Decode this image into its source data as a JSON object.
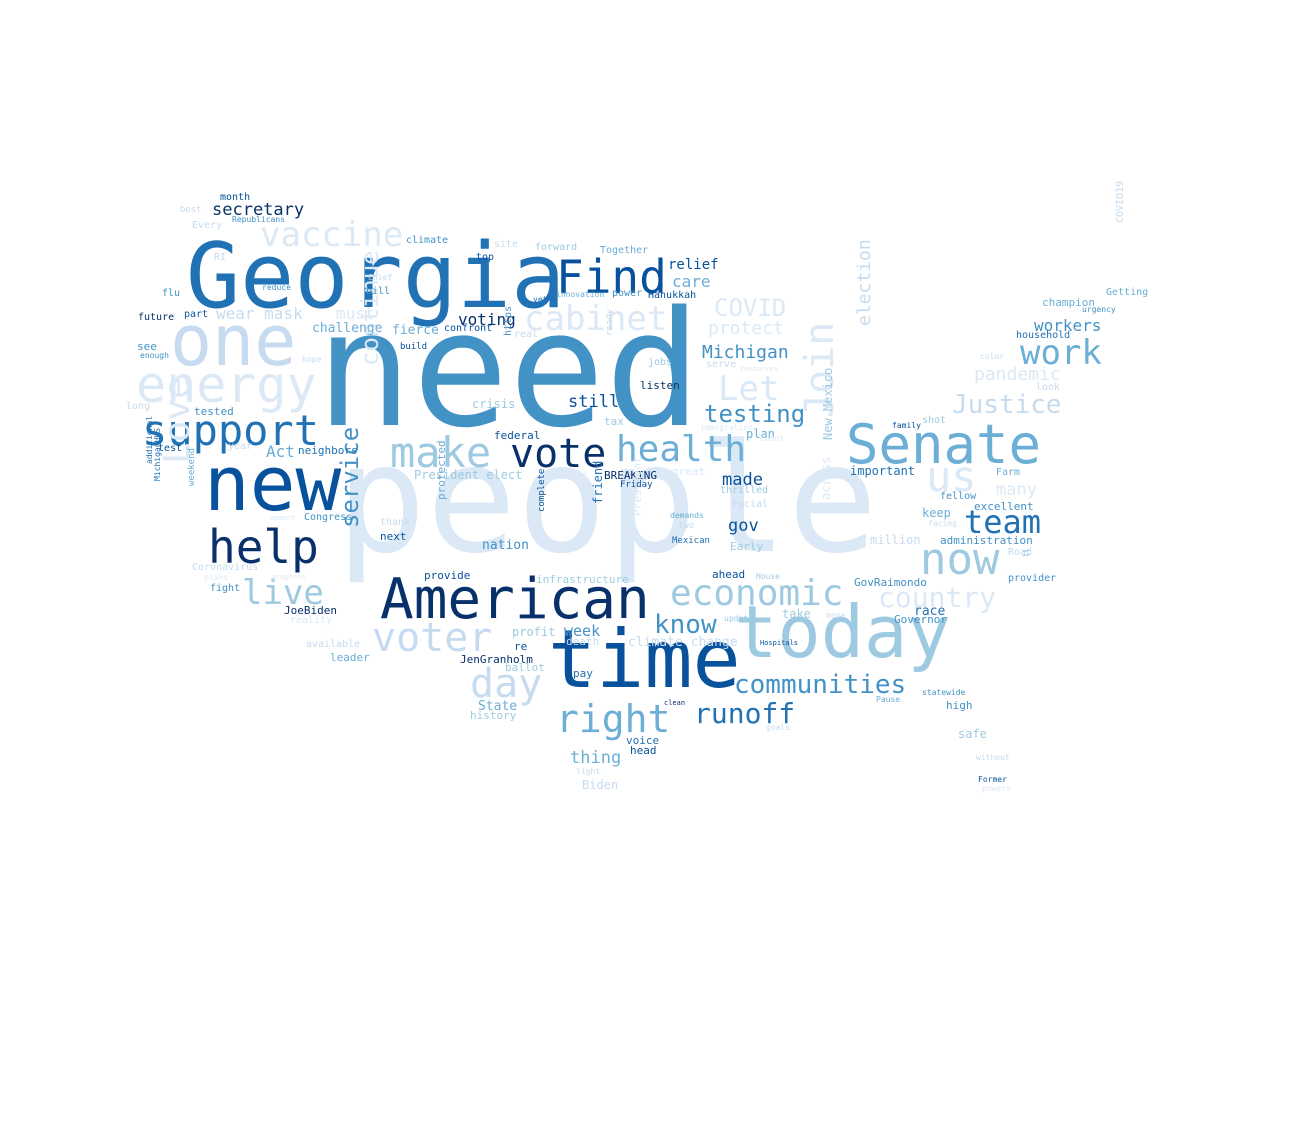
{
  "palette": {
    "p1": "#dbe8f5",
    "p2": "#c6dbef",
    "p3": "#9ecae1",
    "p4": "#6baed6",
    "p5": "#4292c6",
    "p6": "#2171b5",
    "p7": "#08519c",
    "p8": "#08306b"
  },
  "words": [
    {
      "text": "need",
      "color": "p5"
    },
    {
      "text": "people",
      "color": "p1"
    },
    {
      "text": "Georgia",
      "color": "p6"
    },
    {
      "text": "time",
      "color": "p7"
    },
    {
      "text": "new",
      "color": "p7"
    },
    {
      "text": "today",
      "color": "p3"
    },
    {
      "text": "one",
      "color": "p2"
    },
    {
      "text": "American",
      "color": "p8"
    },
    {
      "text": "Senate",
      "color": "p4"
    },
    {
      "text": "energy",
      "color": "p1"
    },
    {
      "text": "help",
      "color": "p8"
    },
    {
      "text": "support",
      "color": "p6"
    },
    {
      "text": "Find",
      "color": "p7"
    },
    {
      "text": "make",
      "color": "p3"
    },
    {
      "text": "vote",
      "color": "p8"
    },
    {
      "text": "health",
      "color": "p4"
    },
    {
      "text": "now",
      "color": "p3"
    },
    {
      "text": "right",
      "color": "p4"
    },
    {
      "text": "voter",
      "color": "p2"
    },
    {
      "text": "day",
      "color": "p2"
    },
    {
      "text": "economic",
      "color": "p3"
    },
    {
      "text": "cabinet",
      "color": "p1"
    },
    {
      "text": "vaccine",
      "color": "p1"
    },
    {
      "text": "live",
      "color": "p3"
    },
    {
      "text": "team",
      "color": "p6"
    },
    {
      "text": "work",
      "color": "p4"
    },
    {
      "text": "us",
      "color": "p1"
    },
    {
      "text": "Justice",
      "color": "p2"
    },
    {
      "text": "communities",
      "color": "p5"
    },
    {
      "text": "country",
      "color": "p1"
    },
    {
      "text": "Let",
      "color": "p1"
    },
    {
      "text": "runoff",
      "color": "p6"
    },
    {
      "text": "know",
      "color": "p5"
    },
    {
      "text": "Join",
      "color": "p1"
    },
    {
      "text": "Love",
      "color": "p1"
    },
    {
      "text": "service",
      "color": "p5"
    },
    {
      "text": "continue",
      "color": "p1"
    },
    {
      "text": "COVID",
      "color": "p1"
    },
    {
      "text": "testing",
      "color": "p5"
    },
    {
      "text": "Michigan",
      "color": "p5"
    },
    {
      "text": "protect",
      "color": "p1"
    },
    {
      "text": "election",
      "color": "p2"
    },
    {
      "text": "pandemic",
      "color": "p1"
    },
    {
      "text": "wear mask",
      "color": "p2"
    },
    {
      "text": "must",
      "color": "p1"
    },
    {
      "text": "secretary",
      "color": "p8"
    },
    {
      "text": "voting",
      "color": "p8"
    },
    {
      "text": "still",
      "color": "p7"
    },
    {
      "text": "workers",
      "color": "p5"
    },
    {
      "text": "care",
      "color": "p4"
    },
    {
      "text": "relief",
      "color": "p7"
    },
    {
      "text": "gov",
      "color": "p7"
    },
    {
      "text": "made",
      "color": "p7"
    },
    {
      "text": "week",
      "color": "p5"
    },
    {
      "text": "thing",
      "color": "p4"
    },
    {
      "text": "Act",
      "color": "p4"
    },
    {
      "text": "many",
      "color": "p1"
    },
    {
      "text": "challenge",
      "color": "p4"
    },
    {
      "text": "fierce",
      "color": "p4"
    },
    {
      "text": "President elect",
      "color": "p3"
    },
    {
      "text": "State",
      "color": "p4"
    },
    {
      "text": "plan",
      "color": "p4"
    },
    {
      "text": "million",
      "color": "p2"
    },
    {
      "text": "climate change",
      "color": "p2"
    },
    {
      "text": "crisis",
      "color": "p3"
    },
    {
      "text": "nation",
      "color": "p5"
    },
    {
      "text": "profit",
      "color": "p3"
    },
    {
      "text": "friend",
      "color": "p6"
    },
    {
      "text": "New Mexico",
      "color": "p3"
    },
    {
      "text": "across",
      "color": "p1"
    },
    {
      "text": "important",
      "color": "p6"
    },
    {
      "text": "keep",
      "color": "p4"
    },
    {
      "text": "administration",
      "color": "p5"
    },
    {
      "text": "excellent",
      "color": "p5"
    },
    {
      "text": "champion",
      "color": "p4"
    },
    {
      "text": "household",
      "color": "p6"
    },
    {
      "text": "race",
      "color": "p6"
    },
    {
      "text": "take",
      "color": "p3"
    },
    {
      "text": "Governor",
      "color": "p5"
    },
    {
      "text": "GovRaimondo",
      "color": "p5"
    },
    {
      "text": "high",
      "color": "p5"
    },
    {
      "text": "safe",
      "color": "p3"
    },
    {
      "text": "Early",
      "color": "p3"
    },
    {
      "text": "ahead",
      "color": "p7"
    },
    {
      "text": "JenGranholm",
      "color": "p8"
    },
    {
      "text": "JoeBiden",
      "color": "p8"
    },
    {
      "text": "neighbors",
      "color": "p6"
    },
    {
      "text": "Congress",
      "color": "p5"
    },
    {
      "text": "tested",
      "color": "p5"
    },
    {
      "text": "federal",
      "color": "p7"
    },
    {
      "text": "BREAKING",
      "color": "p8"
    },
    {
      "text": "listen",
      "color": "p8"
    },
    {
      "text": "voice",
      "color": "p6"
    },
    {
      "text": "head",
      "color": "p7"
    },
    {
      "text": "Biden",
      "color": "p2"
    },
    {
      "text": "provide",
      "color": "p7"
    },
    {
      "text": "fight",
      "color": "p5"
    },
    {
      "text": "leader",
      "color": "p4"
    },
    {
      "text": "available",
      "color": "p2"
    },
    {
      "text": "reality",
      "color": "p1"
    },
    {
      "text": "re",
      "color": "p7"
    },
    {
      "text": "pay",
      "color": "p6"
    },
    {
      "text": "ballot",
      "color": "p3"
    },
    {
      "text": "history",
      "color": "p3"
    },
    {
      "text": "next",
      "color": "p7"
    },
    {
      "text": "thank",
      "color": "p2"
    },
    {
      "text": "protected",
      "color": "p4"
    },
    {
      "text": "President",
      "color": "p1"
    },
    {
      "text": "infrastructure",
      "color": "p3"
    },
    {
      "text": "death",
      "color": "p2"
    },
    {
      "text": "complete",
      "color": "p7"
    },
    {
      "text": "Mexican",
      "color": "p6"
    },
    {
      "text": "two",
      "color": "p2"
    },
    {
      "text": "demands",
      "color": "p4"
    },
    {
      "text": "racial",
      "color": "p2"
    },
    {
      "text": "thrilled",
      "color": "p3"
    },
    {
      "text": "Public",
      "color": "p1"
    },
    {
      "text": "tax",
      "color": "p3"
    },
    {
      "text": "great",
      "color": "p1"
    },
    {
      "text": "Friday",
      "color": "p7"
    },
    {
      "text": "jobs",
      "color": "p3"
    },
    {
      "text": "serve",
      "color": "p2"
    },
    {
      "text": "https",
      "color": "p5"
    },
    {
      "text": "ready",
      "color": "p2"
    },
    {
      "text": "real",
      "color": "p2"
    },
    {
      "text": "confront",
      "color": "p7"
    },
    {
      "text": "build",
      "color": "p7"
    },
    {
      "text": "power",
      "color": "p5"
    },
    {
      "text": "Hanukkah",
      "color": "p7"
    },
    {
      "text": "innovation",
      "color": "p4"
    },
    {
      "text": "yet",
      "color": "p6"
    },
    {
      "text": "forward",
      "color": "p3"
    },
    {
      "text": "site",
      "color": "p2"
    },
    {
      "text": "Together",
      "color": "p4"
    },
    {
      "text": "top",
      "color": "p7"
    },
    {
      "text": "climate",
      "color": "p5"
    },
    {
      "text": "Chief",
      "color": "p2"
    },
    {
      "text": "bill",
      "color": "p5"
    },
    {
      "text": "reduce",
      "color": "p5"
    },
    {
      "text": "part",
      "color": "p7"
    },
    {
      "text": "flu",
      "color": "p5"
    },
    {
      "text": "future",
      "color": "p8"
    },
    {
      "text": "see",
      "color": "p5"
    },
    {
      "text": "enough",
      "color": "p5"
    },
    {
      "text": "hope",
      "color": "p2"
    },
    {
      "text": "month",
      "color": "p7"
    },
    {
      "text": "best",
      "color": "p2"
    },
    {
      "text": "Republicans",
      "color": "p5"
    },
    {
      "text": "Every",
      "color": "p2"
    },
    {
      "text": "RI",
      "color": "p2"
    },
    {
      "text": "test",
      "color": "p7"
    },
    {
      "text": "year",
      "color": "p2"
    },
    {
      "text": "weekend",
      "color": "p4"
    },
    {
      "text": "additional",
      "color": "p6"
    },
    {
      "text": "MichiganHHS",
      "color": "p6"
    },
    {
      "text": "Coronavirus",
      "color": "p2"
    },
    {
      "text": "plans",
      "color": "p1"
    },
    {
      "text": "moment",
      "color": "p1"
    },
    {
      "text": "progress",
      "color": "p1"
    },
    {
      "text": "long",
      "color": "p2"
    },
    {
      "text": "Getting",
      "color": "p4"
    },
    {
      "text": "COVID19",
      "color": "p2"
    },
    {
      "text": "urgency",
      "color": "p5"
    },
    {
      "text": "color",
      "color": "p2"
    },
    {
      "text": "look",
      "color": "p2"
    },
    {
      "text": "shot",
      "color": "p3"
    },
    {
      "text": "family",
      "color": "p7"
    },
    {
      "text": "Farm",
      "color": "p4"
    },
    {
      "text": "fellow",
      "color": "p5"
    },
    {
      "text": "facing",
      "color": "p2"
    },
    {
      "text": "Road",
      "color": "p2"
    },
    {
      "text": "ll",
      "color": "p4"
    },
    {
      "text": "provider",
      "color": "p5"
    },
    {
      "text": "House",
      "color": "p3"
    },
    {
      "text": "update",
      "color": "p3"
    },
    {
      "text": "move",
      "color": "p2"
    },
    {
      "text": "Hospitals",
      "color": "p7"
    },
    {
      "text": "statewide",
      "color": "p5"
    },
    {
      "text": "Pause",
      "color": "p4"
    },
    {
      "text": "goals",
      "color": "p2"
    },
    {
      "text": "clean",
      "color": "p8"
    },
    {
      "text": "without",
      "color": "p2"
    },
    {
      "text": "Former",
      "color": "p7"
    },
    {
      "text": "powers",
      "color": "p1"
    },
    {
      "text": "light",
      "color": "p2"
    },
    {
      "text": "resources",
      "color": "p1"
    },
    {
      "text": "count",
      "color": "p1"
    },
    {
      "text": "immigration",
      "color": "p1"
    }
  ]
}
